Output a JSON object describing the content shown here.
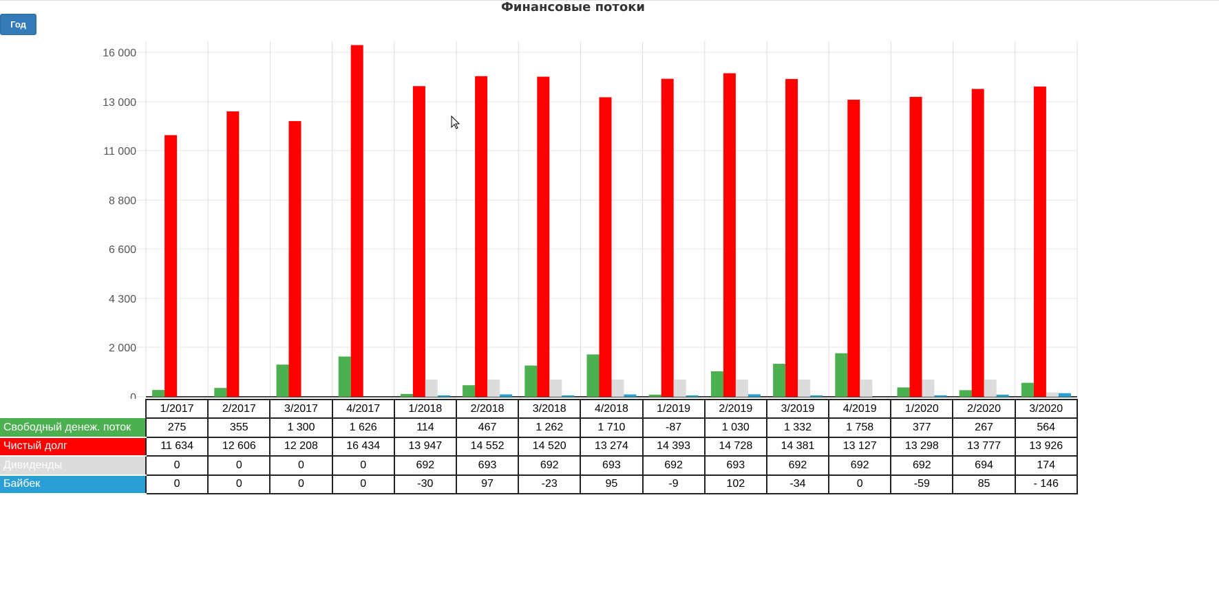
{
  "period_button": {
    "label": "Год"
  },
  "chart_data": {
    "type": "bar",
    "title": "Финансовые потоки",
    "categories": [
      "1/2017",
      "2/2017",
      "3/2017",
      "4/2017",
      "1/2018",
      "2/2018",
      "3/2018",
      "4/2018",
      "1/2019",
      "2/2019",
      "3/2019",
      "4/2019",
      "1/2020",
      "2/2020",
      "3/2020"
    ],
    "y_ticks": [
      0,
      2000,
      4300,
      6600,
      8800,
      11000,
      13000,
      16000
    ],
    "y_tick_labels": [
      "0",
      "2 000",
      "4 300",
      "6 600",
      "8 800",
      "11 000",
      "13 000",
      "16 000"
    ],
    "ylim": [
      0,
      16500
    ],
    "grid": true,
    "legend": "table-below",
    "series": [
      {
        "name": "Свободный денеж. поток",
        "color": "#4caf50",
        "values": [
          275,
          355,
          1300,
          1626,
          114,
          467,
          1262,
          1710,
          -87,
          1030,
          1332,
          1758,
          377,
          267,
          564
        ],
        "labels": [
          "275",
          "355",
          "1 300",
          "1 626",
          "114",
          "467",
          "1 262",
          "1 710",
          "-87",
          "1 030",
          "1 332",
          "1 758",
          "377",
          "267",
          "564"
        ]
      },
      {
        "name": "Чистый долг",
        "color": "#ff0000",
        "values": [
          11634,
          12606,
          12208,
          16434,
          13947,
          14552,
          14520,
          13274,
          14393,
          14728,
          14381,
          13127,
          13298,
          13777,
          13926
        ],
        "labels": [
          "11 634",
          "12 606",
          "12 208",
          "16 434",
          "13 947",
          "14 552",
          "14 520",
          "13 274",
          "14 393",
          "14 728",
          "14 381",
          "13 127",
          "13 298",
          "13 777",
          "13 926"
        ]
      },
      {
        "name": "Дивиденды",
        "color": "#dcdcdc",
        "values": [
          0,
          0,
          0,
          0,
          692,
          693,
          692,
          693,
          692,
          693,
          692,
          692,
          692,
          694,
          174
        ],
        "labels": [
          "0",
          "0",
          "0",
          "0",
          "692",
          "693",
          "692",
          "693",
          "692",
          "693",
          "692",
          "692",
          "692",
          "694",
          "174"
        ]
      },
      {
        "name": "Байбек",
        "color": "#2a9fd6",
        "values": [
          0,
          0,
          0,
          0,
          -30,
          97,
          -23,
          95,
          -9,
          102,
          -34,
          0,
          -59,
          85,
          -146
        ],
        "labels": [
          "0",
          "0",
          "0",
          "0",
          "-30",
          "97",
          "-23",
          "95",
          "-9",
          "102",
          "-34",
          "0",
          "-59",
          "85",
          "- 146"
        ]
      }
    ]
  }
}
